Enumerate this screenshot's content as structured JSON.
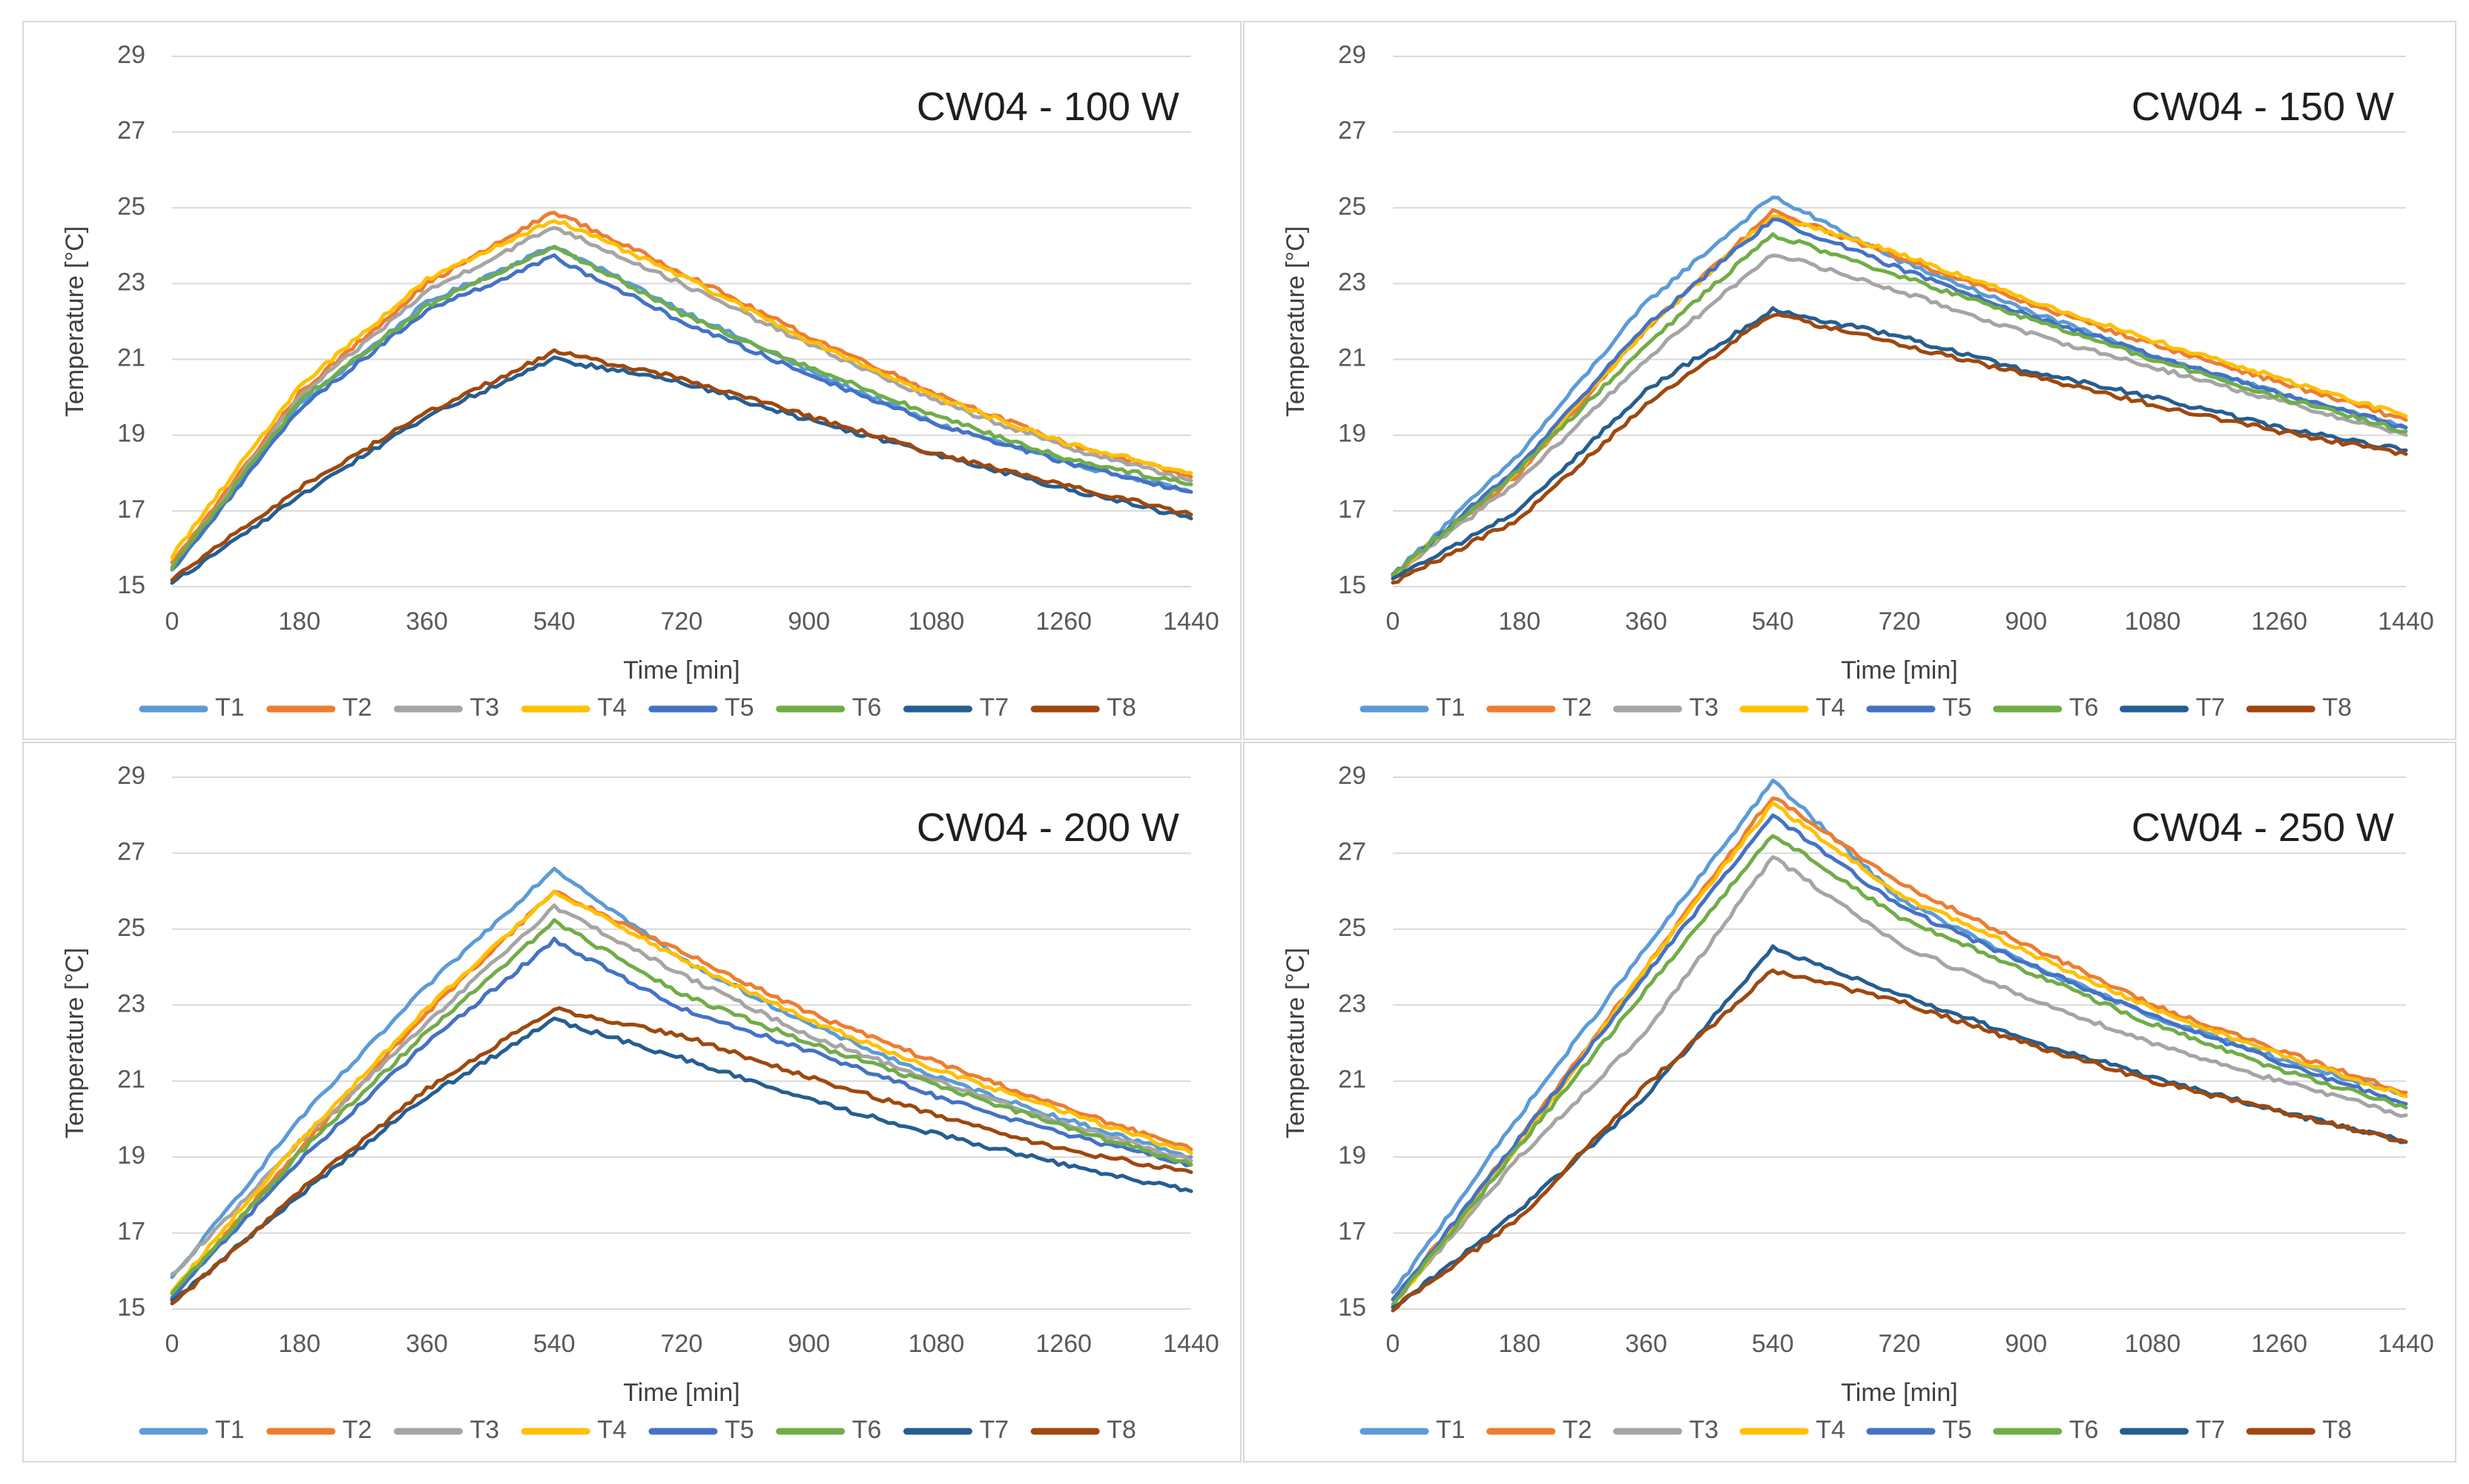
{
  "chart_data": [
    {
      "type": "line",
      "title": "CW04 - 100 W",
      "xlabel": "Time [min]",
      "ylabel": "Temperature [°C]",
      "xlim": [
        0,
        1440
      ],
      "ylim": [
        15,
        29
      ],
      "x_ticks": [
        "0",
        "180",
        "360",
        "540",
        "720",
        "900",
        "1080",
        "1260",
        "1440"
      ],
      "y_ticks": [
        "15",
        "17",
        "19",
        "21",
        "23",
        "25",
        "27",
        "29"
      ],
      "legend_position": "bottom",
      "x": [
        0,
        180,
        360,
        540,
        720,
        900,
        1080,
        1260,
        1440
      ],
      "series": [
        {
          "name": "T1",
          "color": "#5B9BD5",
          "values": [
            15.5,
            19.8,
            22.5,
            24.0,
            22.3,
            20.7,
            19.3,
            18.3,
            17.5
          ]
        },
        {
          "name": "T2",
          "color": "#ED7D31",
          "values": [
            15.6,
            20.1,
            23.0,
            24.9,
            23.3,
            21.6,
            20.1,
            18.8,
            17.9
          ]
        },
        {
          "name": "T3",
          "color": "#A5A5A5",
          "values": [
            15.5,
            20.0,
            22.8,
            24.5,
            23.0,
            21.4,
            19.9,
            18.7,
            17.8
          ]
        },
        {
          "name": "T4",
          "color": "#FFC000",
          "values": [
            15.8,
            20.3,
            23.1,
            24.7,
            23.2,
            21.5,
            20.0,
            18.8,
            18.0
          ]
        },
        {
          "name": "T5",
          "color": "#4472C4",
          "values": [
            15.4,
            19.7,
            22.3,
            23.7,
            22.0,
            20.6,
            19.3,
            18.3,
            17.5
          ]
        },
        {
          "name": "T6",
          "color": "#70AD47",
          "values": [
            15.5,
            19.9,
            22.4,
            24.0,
            22.2,
            20.8,
            19.5,
            18.4,
            17.7
          ]
        },
        {
          "name": "T7",
          "color": "#255E91",
          "values": [
            15.1,
            17.4,
            19.5,
            21.0,
            20.4,
            19.4,
            18.5,
            17.6,
            16.8
          ]
        },
        {
          "name": "T8",
          "color": "#9E480E",
          "values": [
            15.2,
            17.6,
            19.6,
            21.2,
            20.5,
            19.5,
            18.5,
            17.7,
            16.9
          ]
        }
      ]
    },
    {
      "type": "line",
      "title": "CW04 - 150 W",
      "xlabel": "Time [min]",
      "ylabel": "Temperature [°C]",
      "xlim": [
        0,
        1440
      ],
      "ylim": [
        15,
        29
      ],
      "x_ticks": [
        "0",
        "180",
        "360",
        "540",
        "720",
        "900",
        "1080",
        "1260",
        "1440"
      ],
      "y_ticks": [
        "15",
        "17",
        "19",
        "21",
        "23",
        "25",
        "27",
        "29"
      ],
      "legend_position": "bottom",
      "x": [
        0,
        180,
        360,
        540,
        720,
        900,
        1080,
        1260,
        1440
      ],
      "series": [
        {
          "name": "T1",
          "color": "#5B9BD5",
          "values": [
            15.3,
            18.5,
            22.5,
            25.3,
            23.6,
            22.3,
            21.1,
            20.1,
            19.2
          ]
        },
        {
          "name": "T2",
          "color": "#ED7D31",
          "values": [
            15.3,
            18.0,
            21.8,
            24.9,
            23.7,
            22.5,
            21.4,
            20.4,
            19.4
          ]
        },
        {
          "name": "T3",
          "color": "#A5A5A5",
          "values": [
            15.3,
            17.8,
            21.0,
            23.8,
            22.8,
            21.7,
            20.8,
            19.9,
            19.0
          ]
        },
        {
          "name": "T4",
          "color": "#FFC000",
          "values": [
            15.3,
            18.1,
            21.8,
            24.8,
            23.8,
            22.6,
            21.5,
            20.5,
            19.5
          ]
        },
        {
          "name": "T5",
          "color": "#4472C4",
          "values": [
            15.3,
            18.2,
            21.9,
            24.7,
            23.4,
            22.2,
            21.1,
            20.1,
            19.2
          ]
        },
        {
          "name": "T6",
          "color": "#70AD47",
          "values": [
            15.3,
            18.1,
            21.4,
            24.3,
            23.2,
            22.1,
            21.0,
            20.0,
            19.1
          ]
        },
        {
          "name": "T7",
          "color": "#255E91",
          "values": [
            15.2,
            17.0,
            20.2,
            22.3,
            21.6,
            20.7,
            20.0,
            19.2,
            18.6
          ]
        },
        {
          "name": "T8",
          "color": "#9E480E",
          "values": [
            15.1,
            16.8,
            19.8,
            22.2,
            21.4,
            20.6,
            19.8,
            19.1,
            18.5
          ]
        }
      ]
    },
    {
      "type": "line",
      "title": "CW04 - 200 W",
      "xlabel": "Time [min]",
      "ylabel": "Temperature [°C]",
      "xlim": [
        0,
        1440
      ],
      "ylim": [
        15,
        29
      ],
      "x_ticks": [
        "0",
        "180",
        "360",
        "540",
        "720",
        "900",
        "1080",
        "1260",
        "1440"
      ],
      "y_ticks": [
        "15",
        "17",
        "19",
        "21",
        "23",
        "25",
        "27",
        "29"
      ],
      "legend_position": "bottom",
      "x": [
        0,
        180,
        360,
        540,
        720,
        900,
        1080,
        1260,
        1440
      ],
      "series": [
        {
          "name": "T1",
          "color": "#5B9BD5",
          "values": [
            15.8,
            20.0,
            23.5,
            26.6,
            24.2,
            22.5,
            21.1,
            20.0,
            19.0
          ]
        },
        {
          "name": "T2",
          "color": "#ED7D31",
          "values": [
            15.3,
            19.2,
            22.8,
            26.0,
            24.4,
            22.8,
            21.5,
            20.3,
            19.2
          ]
        },
        {
          "name": "T3",
          "color": "#A5A5A5",
          "values": [
            15.9,
            19.4,
            22.5,
            25.6,
            23.8,
            22.2,
            21.0,
            19.9,
            18.9
          ]
        },
        {
          "name": "T4",
          "color": "#FFC000",
          "values": [
            15.5,
            19.4,
            22.9,
            26.0,
            24.2,
            22.6,
            21.3,
            20.2,
            19.1
          ]
        },
        {
          "name": "T5",
          "color": "#4472C4",
          "values": [
            15.3,
            18.9,
            22.0,
            24.7,
            22.9,
            21.8,
            20.6,
            19.6,
            18.8
          ]
        },
        {
          "name": "T6",
          "color": "#70AD47",
          "values": [
            15.4,
            19.1,
            22.3,
            25.2,
            23.3,
            22.0,
            20.9,
            19.8,
            18.8
          ]
        },
        {
          "name": "T7",
          "color": "#255E91",
          "values": [
            15.2,
            18.0,
            20.6,
            22.6,
            21.6,
            20.5,
            19.6,
            18.8,
            18.1
          ]
        },
        {
          "name": "T8",
          "color": "#9E480E",
          "values": [
            15.1,
            18.1,
            20.8,
            22.9,
            22.2,
            21.1,
            20.1,
            19.2,
            18.6
          ]
        }
      ]
    },
    {
      "type": "line",
      "title": "CW04 - 250 W",
      "xlabel": "Time [min]",
      "ylabel": "Temperature [°C]",
      "xlim": [
        0,
        1440
      ],
      "ylim": [
        15,
        29
      ],
      "x_ticks": [
        "0",
        "180",
        "360",
        "540",
        "720",
        "900",
        "1080",
        "1260",
        "1440"
      ],
      "y_ticks": [
        "15",
        "17",
        "19",
        "21",
        "23",
        "25",
        "27",
        "29"
      ],
      "legend_position": "bottom",
      "x": [
        0,
        180,
        360,
        540,
        720,
        900,
        1080,
        1260,
        1440
      ],
      "series": [
        {
          "name": "T1",
          "color": "#5B9BD5",
          "values": [
            15.4,
            20.1,
            24.5,
            28.9,
            25.8,
            24.1,
            22.7,
            21.6,
            20.6
          ]
        },
        {
          "name": "T2",
          "color": "#ED7D31",
          "values": [
            15.2,
            19.5,
            24.0,
            28.5,
            26.2,
            24.6,
            23.0,
            21.8,
            20.7
          ]
        },
        {
          "name": "T3",
          "color": "#A5A5A5",
          "values": [
            15.1,
            19.0,
            22.3,
            26.9,
            24.6,
            23.2,
            22.0,
            21.0,
            20.1
          ]
        },
        {
          "name": "T4",
          "color": "#FFC000",
          "values": [
            15.1,
            19.3,
            24.0,
            28.3,
            25.9,
            24.4,
            22.9,
            21.7,
            20.6
          ]
        },
        {
          "name": "T5",
          "color": "#4472C4",
          "values": [
            15.2,
            19.5,
            23.8,
            28.0,
            25.6,
            24.1,
            22.7,
            21.5,
            20.4
          ]
        },
        {
          "name": "T6",
          "color": "#70AD47",
          "values": [
            15.1,
            19.3,
            23.4,
            27.5,
            25.3,
            23.9,
            22.5,
            21.3,
            20.3
          ]
        },
        {
          "name": "T7",
          "color": "#255E91",
          "values": [
            15.0,
            17.6,
            20.6,
            24.5,
            23.3,
            22.1,
            21.1,
            20.2,
            19.4
          ]
        },
        {
          "name": "T8",
          "color": "#9E480E",
          "values": [
            15.0,
            17.4,
            20.9,
            23.9,
            23.1,
            22.0,
            21.0,
            20.2,
            19.4
          ]
        }
      ]
    }
  ]
}
